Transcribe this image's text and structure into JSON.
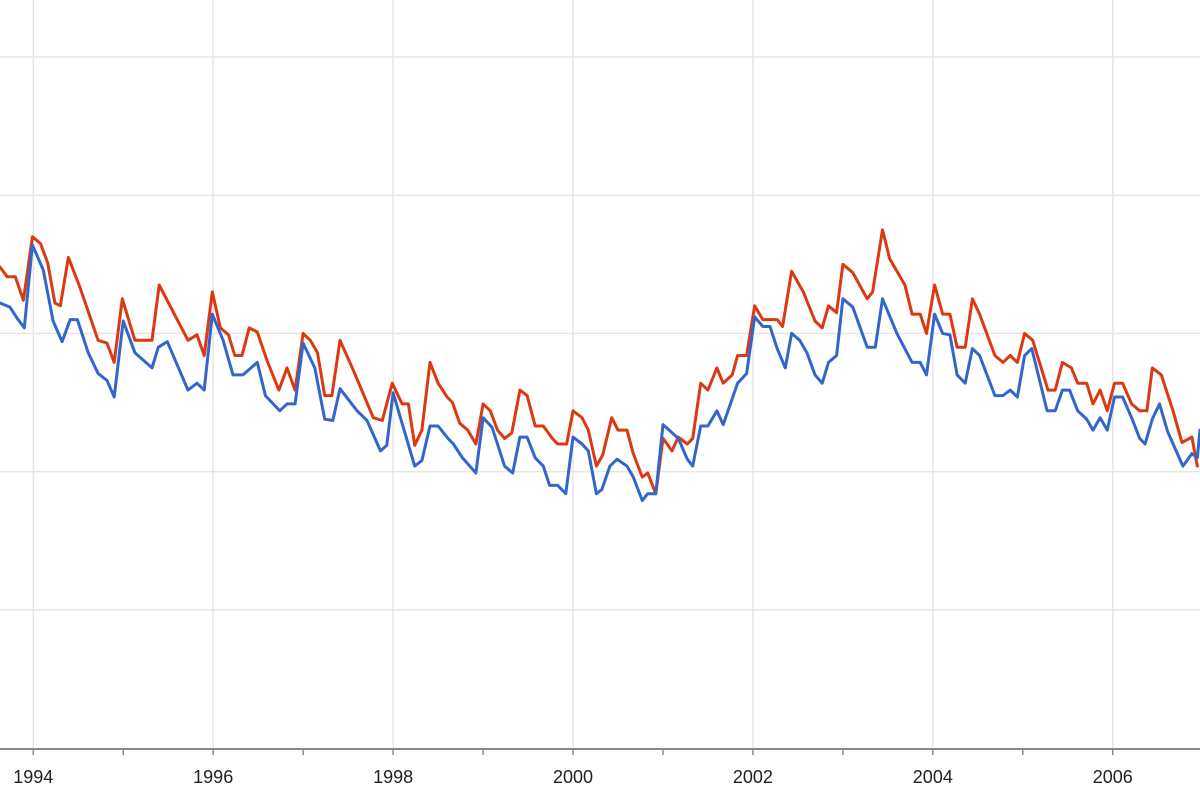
{
  "chart_data": {
    "type": "line",
    "title": "",
    "xlabel": "",
    "ylabel": "",
    "xlim": [
      1993.63,
      2006.97
    ],
    "ylim": [
      0,
      5
    ],
    "x_ticks": [
      "1994",
      "1996",
      "1998",
      "2000",
      "2002",
      "2004",
      "2006"
    ],
    "x_minor_ticks": "yearly",
    "grid": {
      "horizontal": true,
      "vertical": true
    },
    "y_gridlines": [
      1,
      2,
      3,
      4,
      5
    ],
    "y_tick_labels_shown": false,
    "legend": "none",
    "series": [
      {
        "color": "#dc3912",
        "points": [
          [
            1993.63,
            3.48
          ],
          [
            1993.71,
            3.41
          ],
          [
            1993.8,
            3.41
          ],
          [
            1993.89,
            3.24
          ],
          [
            1993.99,
            3.7
          ],
          [
            1994.08,
            3.65
          ],
          [
            1994.16,
            3.51
          ],
          [
            1994.24,
            3.22
          ],
          [
            1994.3,
            3.2
          ],
          [
            1994.39,
            3.55
          ],
          [
            1994.52,
            3.33
          ],
          [
            1994.72,
            2.95
          ],
          [
            1994.82,
            2.93
          ],
          [
            1994.9,
            2.79
          ],
          [
            1994.99,
            3.25
          ],
          [
            1995.13,
            2.95
          ],
          [
            1995.32,
            2.95
          ],
          [
            1995.4,
            3.35
          ],
          [
            1995.72,
            2.95
          ],
          [
            1995.82,
            2.99
          ],
          [
            1995.9,
            2.84
          ],
          [
            1995.99,
            3.3
          ],
          [
            1996.08,
            3.04
          ],
          [
            1996.17,
            2.99
          ],
          [
            1996.24,
            2.84
          ],
          [
            1996.32,
            2.84
          ],
          [
            1996.4,
            3.04
          ],
          [
            1996.49,
            3.01
          ],
          [
            1996.6,
            2.8
          ],
          [
            1996.73,
            2.59
          ],
          [
            1996.82,
            2.75
          ],
          [
            1996.91,
            2.59
          ],
          [
            1997.0,
            3.0
          ],
          [
            1997.08,
            2.95
          ],
          [
            1997.16,
            2.86
          ],
          [
            1997.24,
            2.55
          ],
          [
            1997.32,
            2.55
          ],
          [
            1997.41,
            2.95
          ],
          [
            1997.56,
            2.73
          ],
          [
            1997.78,
            2.39
          ],
          [
            1997.88,
            2.37
          ],
          [
            1997.99,
            2.64
          ],
          [
            1998.1,
            2.49
          ],
          [
            1998.17,
            2.49
          ],
          [
            1998.24,
            2.19
          ],
          [
            1998.32,
            2.3
          ],
          [
            1998.41,
            2.79
          ],
          [
            1998.5,
            2.64
          ],
          [
            1998.6,
            2.54
          ],
          [
            1998.66,
            2.5
          ],
          [
            1998.74,
            2.35
          ],
          [
            1998.83,
            2.3
          ],
          [
            1998.92,
            2.2
          ],
          [
            1999.0,
            2.49
          ],
          [
            1999.08,
            2.44
          ],
          [
            1999.16,
            2.3
          ],
          [
            1999.24,
            2.24
          ],
          [
            1999.32,
            2.28
          ],
          [
            1999.41,
            2.59
          ],
          [
            1999.49,
            2.55
          ],
          [
            1999.58,
            2.33
          ],
          [
            1999.67,
            2.33
          ],
          [
            1999.77,
            2.24
          ],
          [
            1999.83,
            2.2
          ],
          [
            1999.93,
            2.2
          ],
          [
            2000.0,
            2.44
          ],
          [
            2000.1,
            2.39
          ],
          [
            2000.17,
            2.3
          ],
          [
            2000.26,
            2.04
          ],
          [
            2000.33,
            2.12
          ],
          [
            2000.43,
            2.39
          ],
          [
            2000.5,
            2.3
          ],
          [
            2000.6,
            2.3
          ],
          [
            2000.67,
            2.13
          ],
          [
            2000.77,
            1.96
          ],
          [
            2000.83,
            1.99
          ],
          [
            2000.92,
            1.84
          ],
          [
            2001.0,
            2.24
          ],
          [
            2001.1,
            2.15
          ],
          [
            2001.17,
            2.25
          ],
          [
            2001.27,
            2.2
          ],
          [
            2001.33,
            2.24
          ],
          [
            2001.42,
            2.64
          ],
          [
            2001.5,
            2.59
          ],
          [
            2001.6,
            2.75
          ],
          [
            2001.67,
            2.64
          ],
          [
            2001.77,
            2.7
          ],
          [
            2001.83,
            2.84
          ],
          [
            2001.93,
            2.84
          ],
          [
            2002.02,
            3.2
          ],
          [
            2002.11,
            3.1
          ],
          [
            2002.27,
            3.1
          ],
          [
            2002.33,
            3.05
          ],
          [
            2002.43,
            3.45
          ],
          [
            2002.56,
            3.3
          ],
          [
            2002.69,
            3.09
          ],
          [
            2002.77,
            3.04
          ],
          [
            2002.84,
            3.2
          ],
          [
            2002.93,
            3.15
          ],
          [
            2003.0,
            3.5
          ],
          [
            2003.11,
            3.44
          ],
          [
            2003.27,
            3.25
          ],
          [
            2003.33,
            3.3
          ],
          [
            2003.44,
            3.75
          ],
          [
            2003.52,
            3.54
          ],
          [
            2003.69,
            3.35
          ],
          [
            2003.77,
            3.14
          ],
          [
            2003.86,
            3.14
          ],
          [
            2003.93,
            3.0
          ],
          [
            2004.02,
            3.35
          ],
          [
            2004.11,
            3.14
          ],
          [
            2004.19,
            3.14
          ],
          [
            2004.27,
            2.9
          ],
          [
            2004.36,
            2.9
          ],
          [
            2004.44,
            3.25
          ],
          [
            2004.52,
            3.14
          ],
          [
            2004.69,
            2.84
          ],
          [
            2004.78,
            2.79
          ],
          [
            2004.86,
            2.84
          ],
          [
            2004.94,
            2.79
          ],
          [
            2005.02,
            3.0
          ],
          [
            2005.11,
            2.95
          ],
          [
            2005.28,
            2.59
          ],
          [
            2005.36,
            2.59
          ],
          [
            2005.44,
            2.79
          ],
          [
            2005.54,
            2.75
          ],
          [
            2005.61,
            2.64
          ],
          [
            2005.71,
            2.64
          ],
          [
            2005.78,
            2.49
          ],
          [
            2005.86,
            2.59
          ],
          [
            2005.94,
            2.44
          ],
          [
            2006.02,
            2.64
          ],
          [
            2006.11,
            2.64
          ],
          [
            2006.21,
            2.49
          ],
          [
            2006.3,
            2.44
          ],
          [
            2006.38,
            2.44
          ],
          [
            2006.44,
            2.75
          ],
          [
            2006.54,
            2.7
          ],
          [
            2006.67,
            2.44
          ],
          [
            2006.77,
            2.21
          ],
          [
            2006.88,
            2.25
          ],
          [
            2006.94,
            2.04
          ]
        ]
      },
      {
        "color": "#3366cc",
        "points": [
          [
            1993.63,
            3.22
          ],
          [
            1993.74,
            3.19
          ],
          [
            1993.82,
            3.11
          ],
          [
            1993.9,
            3.04
          ],
          [
            1993.99,
            3.64
          ],
          [
            1994.11,
            3.46
          ],
          [
            1994.22,
            3.09
          ],
          [
            1994.32,
            2.94
          ],
          [
            1994.41,
            3.1
          ],
          [
            1994.49,
            3.1
          ],
          [
            1994.61,
            2.86
          ],
          [
            1994.72,
            2.71
          ],
          [
            1994.82,
            2.66
          ],
          [
            1994.9,
            2.54
          ],
          [
            1995.0,
            3.09
          ],
          [
            1995.13,
            2.86
          ],
          [
            1995.32,
            2.75
          ],
          [
            1995.39,
            2.9
          ],
          [
            1995.49,
            2.94
          ],
          [
            1995.72,
            2.59
          ],
          [
            1995.82,
            2.64
          ],
          [
            1995.9,
            2.59
          ],
          [
            1995.99,
            3.14
          ],
          [
            1996.11,
            2.95
          ],
          [
            1996.22,
            2.7
          ],
          [
            1996.33,
            2.7
          ],
          [
            1996.49,
            2.79
          ],
          [
            1996.58,
            2.55
          ],
          [
            1996.74,
            2.44
          ],
          [
            1996.82,
            2.49
          ],
          [
            1996.91,
            2.49
          ],
          [
            1997.0,
            2.93
          ],
          [
            1997.13,
            2.75
          ],
          [
            1997.24,
            2.38
          ],
          [
            1997.33,
            2.37
          ],
          [
            1997.41,
            2.6
          ],
          [
            1997.6,
            2.44
          ],
          [
            1997.71,
            2.37
          ],
          [
            1997.86,
            2.15
          ],
          [
            1997.93,
            2.19
          ],
          [
            1998.0,
            2.57
          ],
          [
            1998.24,
            2.04
          ],
          [
            1998.32,
            2.08
          ],
          [
            1998.41,
            2.33
          ],
          [
            1998.5,
            2.33
          ],
          [
            1998.61,
            2.24
          ],
          [
            1998.67,
            2.2
          ],
          [
            1998.77,
            2.1
          ],
          [
            1998.92,
            1.99
          ],
          [
            1999.0,
            2.39
          ],
          [
            1999.1,
            2.32
          ],
          [
            1999.24,
            2.04
          ],
          [
            1999.33,
            1.99
          ],
          [
            1999.41,
            2.25
          ],
          [
            1999.49,
            2.25
          ],
          [
            1999.58,
            2.1
          ],
          [
            1999.67,
            2.04
          ],
          [
            1999.74,
            1.9
          ],
          [
            1999.83,
            1.9
          ],
          [
            1999.92,
            1.84
          ],
          [
            2000.0,
            2.25
          ],
          [
            2000.1,
            2.2
          ],
          [
            2000.17,
            2.15
          ],
          [
            2000.26,
            1.84
          ],
          [
            2000.32,
            1.87
          ],
          [
            2000.41,
            2.04
          ],
          [
            2000.49,
            2.09
          ],
          [
            2000.6,
            2.04
          ],
          [
            2000.67,
            1.96
          ],
          [
            2000.77,
            1.79
          ],
          [
            2000.83,
            1.84
          ],
          [
            2000.92,
            1.84
          ],
          [
            2001.0,
            2.34
          ],
          [
            2001.17,
            2.24
          ],
          [
            2001.27,
            2.09
          ],
          [
            2001.33,
            2.04
          ],
          [
            2001.42,
            2.33
          ],
          [
            2001.5,
            2.33
          ],
          [
            2001.6,
            2.44
          ],
          [
            2001.67,
            2.34
          ],
          [
            2001.83,
            2.64
          ],
          [
            2001.93,
            2.71
          ],
          [
            2002.02,
            3.12
          ],
          [
            2002.11,
            3.05
          ],
          [
            2002.19,
            3.05
          ],
          [
            2002.27,
            2.89
          ],
          [
            2002.36,
            2.75
          ],
          [
            2002.43,
            3.0
          ],
          [
            2002.52,
            2.95
          ],
          [
            2002.6,
            2.86
          ],
          [
            2002.69,
            2.7
          ],
          [
            2002.77,
            2.64
          ],
          [
            2002.84,
            2.79
          ],
          [
            2002.93,
            2.84
          ],
          [
            2003.0,
            3.25
          ],
          [
            2003.11,
            3.19
          ],
          [
            2003.27,
            2.9
          ],
          [
            2003.36,
            2.9
          ],
          [
            2003.44,
            3.25
          ],
          [
            2003.6,
            3.0
          ],
          [
            2003.77,
            2.79
          ],
          [
            2003.86,
            2.79
          ],
          [
            2003.93,
            2.7
          ],
          [
            2004.02,
            3.14
          ],
          [
            2004.11,
            3.0
          ],
          [
            2004.19,
            2.99
          ],
          [
            2004.27,
            2.7
          ],
          [
            2004.36,
            2.64
          ],
          [
            2004.44,
            2.89
          ],
          [
            2004.52,
            2.84
          ],
          [
            2004.69,
            2.55
          ],
          [
            2004.78,
            2.55
          ],
          [
            2004.86,
            2.59
          ],
          [
            2004.94,
            2.54
          ],
          [
            2005.02,
            2.84
          ],
          [
            2005.1,
            2.89
          ],
          [
            2005.27,
            2.44
          ],
          [
            2005.36,
            2.44
          ],
          [
            2005.44,
            2.59
          ],
          [
            2005.52,
            2.59
          ],
          [
            2005.61,
            2.44
          ],
          [
            2005.71,
            2.38
          ],
          [
            2005.78,
            2.3
          ],
          [
            2005.86,
            2.39
          ],
          [
            2005.94,
            2.3
          ],
          [
            2006.02,
            2.54
          ],
          [
            2006.11,
            2.54
          ],
          [
            2006.21,
            2.39
          ],
          [
            2006.3,
            2.24
          ],
          [
            2006.36,
            2.2
          ],
          [
            2006.44,
            2.38
          ],
          [
            2006.52,
            2.49
          ],
          [
            2006.61,
            2.29
          ],
          [
            2006.78,
            2.04
          ],
          [
            2006.88,
            2.13
          ],
          [
            2006.94,
            2.1
          ],
          [
            2006.97,
            2.3
          ]
        ]
      }
    ]
  }
}
